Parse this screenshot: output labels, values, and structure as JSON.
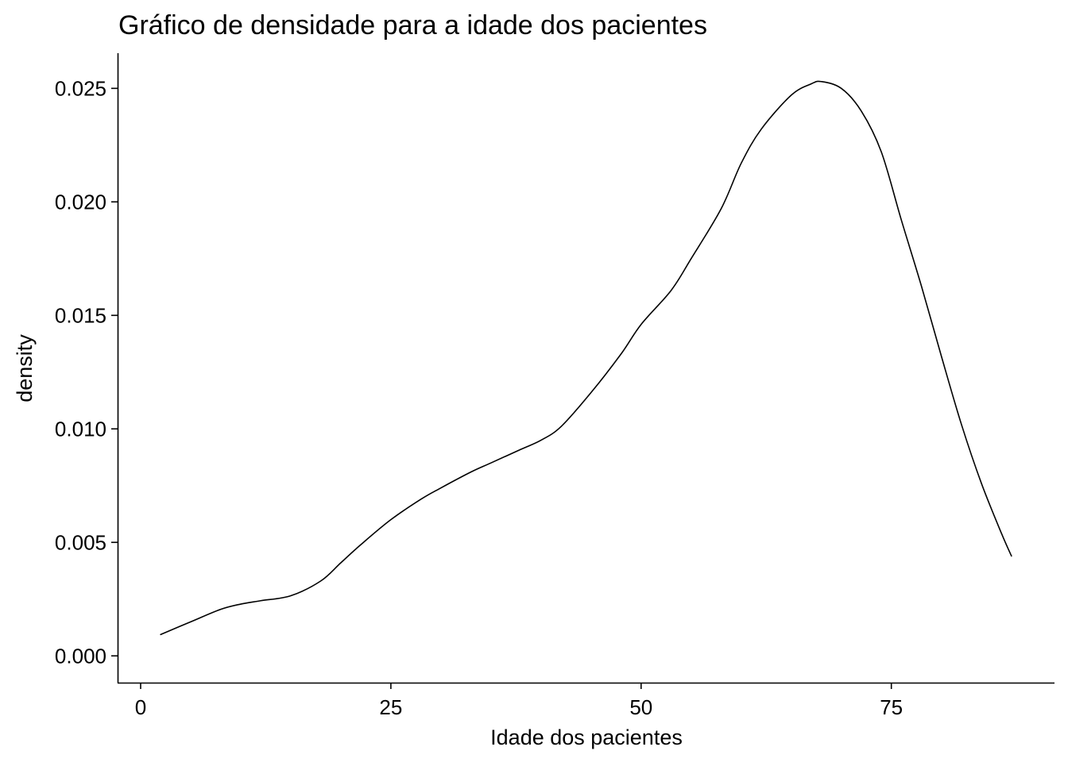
{
  "chart_data": {
    "type": "line",
    "title": "Gráfico de densidade para a idade dos pacientes",
    "xlabel": "Idade dos pacientes",
    "ylabel": "density",
    "xlim": [
      -2.3,
      91.3
    ],
    "ylim": [
      -0.00118,
      0.02655
    ],
    "x_ticks": [
      0,
      25,
      50,
      75
    ],
    "x_tick_labels": [
      "0",
      "25",
      "50",
      "75"
    ],
    "y_ticks": [
      0,
      0.005,
      0.01,
      0.015,
      0.02,
      0.025
    ],
    "y_tick_labels": [
      "0.000",
      "0.005",
      "0.010",
      "0.015",
      "0.020",
      "0.025"
    ],
    "grid": false,
    "line_color": "#000000",
    "series": [
      {
        "x": [
          2,
          5,
          8,
          10,
          12,
          15,
          18,
          20,
          22,
          25,
          28,
          30,
          33,
          35,
          38,
          40,
          42,
          45,
          48,
          50,
          53,
          55,
          58,
          60,
          62,
          65,
          67,
          68,
          70,
          72,
          74,
          76,
          78,
          80,
          82,
          84,
          86,
          87
        ],
        "y": [
          0.00094,
          0.0015,
          0.00205,
          0.00228,
          0.00243,
          0.00265,
          0.0033,
          0.0041,
          0.0049,
          0.006,
          0.0069,
          0.0074,
          0.0081,
          0.0085,
          0.0091,
          0.0095,
          0.0101,
          0.0116,
          0.0133,
          0.0146,
          0.0161,
          0.0175,
          0.0197,
          0.0217,
          0.0232,
          0.0247,
          0.0252,
          0.0253,
          0.025,
          0.024,
          0.0222,
          0.0192,
          0.0163,
          0.0132,
          0.0102,
          0.0076,
          0.0054,
          0.0044
        ]
      }
    ]
  }
}
